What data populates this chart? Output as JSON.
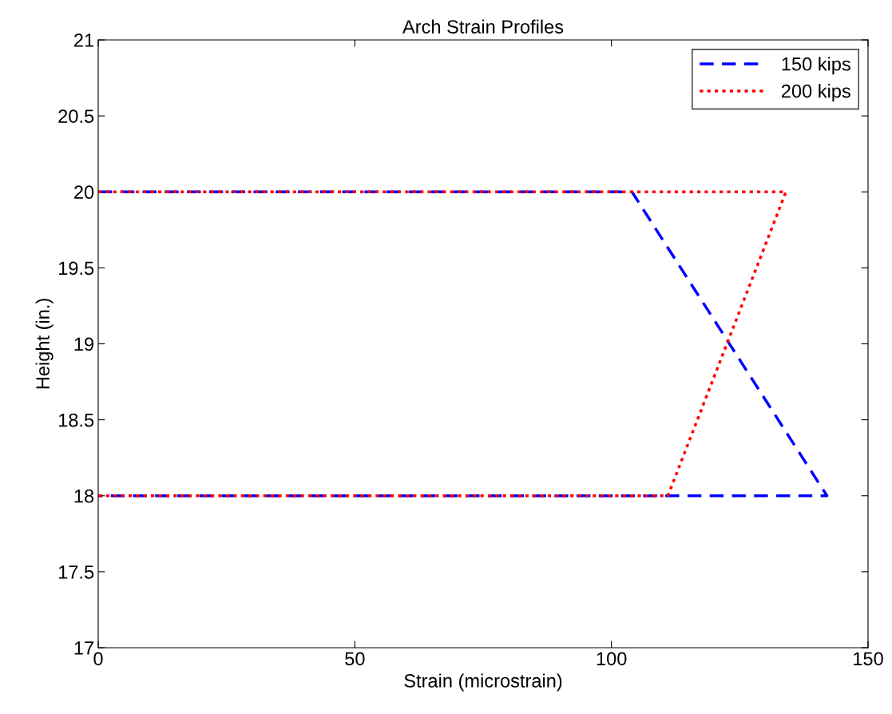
{
  "chart_data": {
    "type": "line",
    "title": "Arch Strain Profiles",
    "xlabel": "Strain (microstrain)",
    "ylabel": "Height (in.)",
    "xlim": [
      0,
      150
    ],
    "xticks": [
      0,
      50,
      100,
      150
    ],
    "ylim": [
      17,
      21
    ],
    "yticks": [
      17,
      17.5,
      18,
      18.5,
      19,
      19.5,
      20,
      20.5,
      21
    ],
    "grid": false,
    "legend": "top right",
    "series": [
      {
        "name": "150 kips",
        "color": "#0000ff",
        "line_style": "dashed",
        "x": [
          0,
          104,
          142,
          0
        ],
        "values": [
          20,
          20,
          18,
          18
        ]
      },
      {
        "name": "200 kips",
        "color": "#ff0000",
        "line_style": "dotted",
        "x": [
          0,
          134,
          111,
          0
        ],
        "values": [
          20,
          20,
          18,
          18
        ]
      }
    ]
  }
}
